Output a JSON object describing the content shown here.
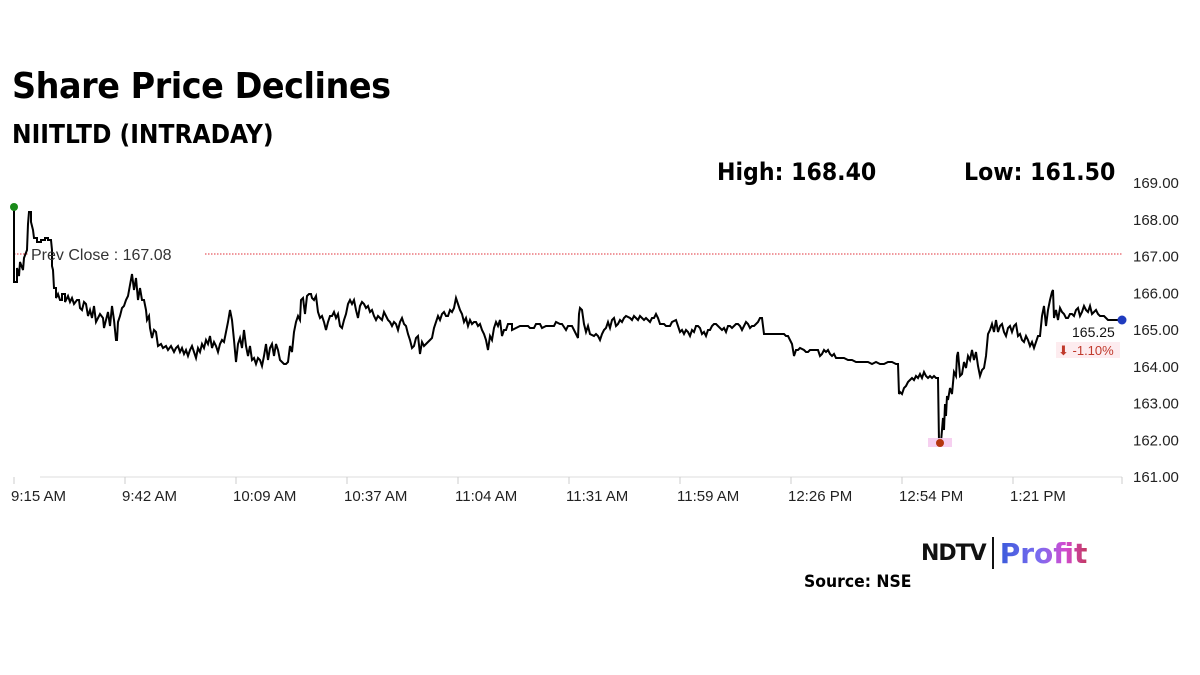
{
  "header": {
    "title": "Share Price Declines",
    "subtitle": "NIITLTD (INTRADAY)"
  },
  "stats": {
    "high_label": "High: 168.40",
    "low_label": "Low: 161.50"
  },
  "annotations": {
    "prev_close_label": "Prev Close : 167.08",
    "last_price": "165.25",
    "change": "⬇ -1.10%"
  },
  "footer": {
    "brand_left": "NDTV",
    "brand_right": "Profit",
    "source": "Source: NSE"
  },
  "colors": {
    "line": "#000000",
    "prev_close": "#e0303a",
    "open_marker": "#1a8a1a",
    "low_marker": "#b5360e",
    "last_marker": "#1f3bbf",
    "change_negative": "#c0392b",
    "grid": "#dddddd"
  },
  "chart_data": {
    "type": "line",
    "title": "Share Price Declines",
    "subtitle": "NIITLTD (INTRADAY)",
    "xlabel": "",
    "ylabel": "",
    "ylim": [
      161,
      169
    ],
    "yticks": [
      "169.00",
      "168.00",
      "167.00",
      "166.00",
      "165.00",
      "164.00",
      "163.00",
      "162.00",
      "161.00"
    ],
    "xticks": [
      "9:15 AM",
      "9:42 AM",
      "10:09 AM",
      "10:37 AM",
      "11:04 AM",
      "11:31 AM",
      "11:59 AM",
      "12:26 PM",
      "12:54 PM",
      "1:21 PM"
    ],
    "grid": false,
    "legend": null,
    "reference_lines": [
      {
        "name": "Prev Close",
        "value": 167.08,
        "style": "dotted",
        "color": "#e0303a"
      }
    ],
    "stats": {
      "high": 168.4,
      "low": 161.5,
      "last": 165.25,
      "change_pct": -1.1
    },
    "series": [
      {
        "name": "NIITLTD",
        "x": [
          "9:15",
          "9:16",
          "9:17",
          "9:19",
          "9:21",
          "9:23",
          "9:26",
          "9:30",
          "9:34",
          "9:38",
          "9:42",
          "9:44",
          "9:46",
          "9:50",
          "9:55",
          "10:00",
          "10:05",
          "10:09",
          "10:13",
          "10:17",
          "10:21",
          "10:26",
          "10:31",
          "10:37",
          "10:42",
          "10:47",
          "10:52",
          "10:57",
          "11:00",
          "11:04",
          "11:09",
          "11:14",
          "11:20",
          "11:26",
          "11:31",
          "11:36",
          "11:42",
          "11:48",
          "11:53",
          "11:59",
          "12:04",
          "12:09",
          "12:14",
          "12:19",
          "12:22",
          "12:26",
          "12:32",
          "12:38",
          "12:44",
          "12:48",
          "12:50",
          "12:52",
          "12:54",
          "12:56",
          "12:58",
          "13:01",
          "13:05",
          "13:09",
          "13:13",
          "13:17",
          "13:21",
          "13:25",
          "13:29",
          "13:33",
          "13:37",
          "13:40"
        ],
        "values": [
          168.32,
          166.5,
          166.8,
          168.2,
          167.4,
          167.4,
          166.1,
          165.8,
          165.5,
          165.3,
          166.4,
          165.8,
          164.5,
          164.4,
          164.4,
          164.6,
          165.4,
          164.2,
          164.8,
          164.2,
          165.9,
          165.6,
          165.3,
          164.8,
          164.2,
          165.3,
          165.1,
          165.6,
          165.2,
          164.5,
          165.0,
          165.0,
          165.1,
          165.0,
          165.4,
          165.0,
          165.2,
          165.2,
          164.9,
          164.9,
          165.1,
          165.0,
          165.1,
          165.2,
          164.9,
          164.3,
          164.3,
          164.2,
          164.1,
          164.0,
          163.2,
          163.7,
          161.9,
          163.2,
          164.4,
          164.2,
          164.6,
          165.2,
          165.0,
          164.8,
          165.3,
          165.1,
          165.9,
          165.4,
          165.5,
          165.25
        ]
      }
    ]
  }
}
